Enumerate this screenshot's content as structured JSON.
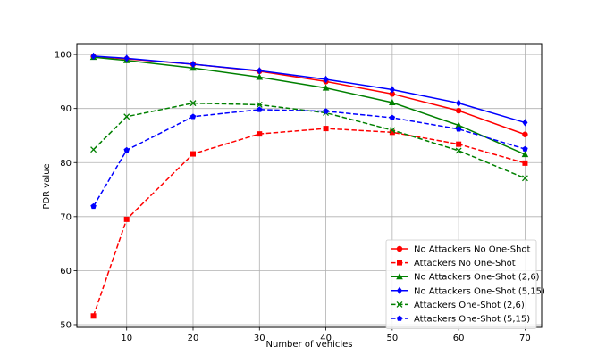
{
  "chart_data": {
    "type": "line",
    "title": "",
    "xlabel": "Number of vehicles",
    "ylabel": "PDR value",
    "xlim": [
      2.5,
      72.5
    ],
    "ylim": [
      49.5,
      102
    ],
    "x": [
      5,
      10,
      20,
      30,
      40,
      50,
      60,
      70
    ],
    "xticks": [
      10,
      20,
      30,
      40,
      50,
      60,
      70
    ],
    "yticks": [
      50,
      60,
      70,
      80,
      90,
      100
    ],
    "grid": true,
    "legend_position": "lower-right",
    "series": [
      {
        "name": "No Attackers No One-Shot",
        "color": "#ff0000",
        "dash": "solid",
        "marker": "circle",
        "values": [
          99.6,
          99.2,
          98.2,
          96.9,
          95.0,
          92.7,
          89.6,
          85.2
        ]
      },
      {
        "name": "Attackers No One-Shot",
        "color": "#ff0000",
        "dash": "dashed",
        "marker": "square",
        "values": [
          51.6,
          69.5,
          81.6,
          85.3,
          86.3,
          85.6,
          83.4,
          79.9
        ]
      },
      {
        "name": "No Attackers One-Shot (2,6)",
        "color": "#008000",
        "dash": "solid",
        "marker": "triangle",
        "values": [
          99.5,
          98.9,
          97.5,
          95.8,
          93.8,
          91.1,
          86.9,
          81.5
        ]
      },
      {
        "name": "No Attackers One-Shot (5,15)",
        "color": "#0000ff",
        "dash": "solid",
        "marker": "diamond",
        "values": [
          99.7,
          99.3,
          98.2,
          97.0,
          95.4,
          93.5,
          91.0,
          87.4
        ]
      },
      {
        "name": "Attackers One-Shot (2,6)",
        "color": "#008000",
        "dash": "dashed",
        "marker": "x",
        "values": [
          82.4,
          88.5,
          91.0,
          90.7,
          89.2,
          86.0,
          82.2,
          77.1
        ]
      },
      {
        "name": "Attackers One-Shot (5,15)",
        "color": "#0000ff",
        "dash": "dashed",
        "marker": "pentagon",
        "values": [
          71.9,
          82.3,
          88.5,
          89.8,
          89.5,
          88.3,
          86.2,
          82.5
        ]
      }
    ]
  }
}
